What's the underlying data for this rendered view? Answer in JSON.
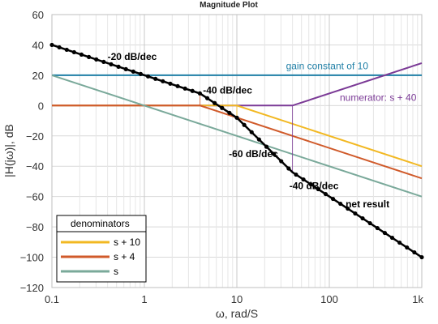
{
  "chart_data": {
    "type": "line",
    "title": "Magnitude Plot",
    "xlabel": "ω, rad/S",
    "ylabel": "|H(jω)|, dB",
    "x_scale": "log",
    "xlim": [
      0.1,
      1000
    ],
    "ylim": [
      -120,
      60
    ],
    "x_ticks": [
      0.1,
      1,
      10,
      100,
      1000
    ],
    "x_tick_labels": [
      "0.1",
      "1",
      "10",
      "100",
      "1k"
    ],
    "y_ticks": [
      60,
      40,
      20,
      0,
      -20,
      -40,
      -60,
      -80,
      -100,
      -120
    ],
    "y_tick_labels": [
      "60",
      "40",
      "20",
      "0",
      "−20",
      "−40",
      "−60",
      "−80",
      "−100",
      "−120"
    ],
    "grid": true,
    "series": [
      {
        "name": "gain constant of 10",
        "color": "#1f7fa6",
        "x": [
          0.1,
          1000
        ],
        "y": [
          20,
          20
        ]
      },
      {
        "name": "numerator: s + 40",
        "color": "#7b3a96",
        "x": [
          0.1,
          40,
          1000
        ],
        "y": [
          0,
          0,
          28
        ]
      },
      {
        "name": "s + 10",
        "color": "#f2b822",
        "x": [
          0.1,
          10,
          1000
        ],
        "y": [
          0,
          0,
          -40
        ]
      },
      {
        "name": "s + 4",
        "color": "#d05a2a",
        "x": [
          0.1,
          4,
          1000
        ],
        "y": [
          0,
          0,
          -48
        ]
      },
      {
        "name": "s",
        "color": "#7aa99a",
        "x": [
          0.1,
          1000
        ],
        "y": [
          20,
          -60
        ]
      },
      {
        "name": "net result",
        "color": "#000000",
        "x": [
          0.1,
          4,
          10,
          40,
          1000
        ],
        "y": [
          40,
          8,
          -8,
          -44,
          -100
        ]
      }
    ],
    "annotations": [
      {
        "text": "-20 dB/dec",
        "x": 0.4,
        "y": 30
      },
      {
        "text": "-40 dB/dec",
        "x": 4.3,
        "y": 8
      },
      {
        "text": "-60 dB/dec",
        "x": 8.2,
        "y": -34
      },
      {
        "text": "-40 dB/dec",
        "x": 37,
        "y": -55
      },
      {
        "text": "net result",
        "x": 150,
        "y": -67
      },
      {
        "text": "gain constant of 10",
        "x": 34,
        "y": 24
      },
      {
        "text": "numerator: s + 40",
        "x": 130,
        "y": 3
      }
    ],
    "legend": {
      "title": "denominators",
      "placement": "bottom-left",
      "items": [
        "s + 10",
        "s + 4",
        "s"
      ]
    }
  }
}
